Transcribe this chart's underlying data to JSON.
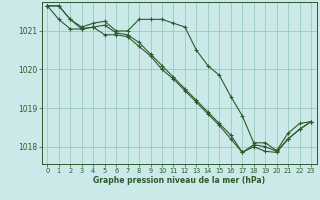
{
  "background_color": "#cbe9e9",
  "plot_bg_color": "#cbe9e9",
  "grid_color": "#99ccbb",
  "line_color": "#2d5a2d",
  "xlabel": "Graphe pression niveau de la mer (hPa)",
  "ylim": [
    1017.55,
    1021.75
  ],
  "xlim": [
    -0.5,
    23.5
  ],
  "yticks": [
    1018,
    1019,
    1020,
    1021
  ],
  "xticks": [
    0,
    1,
    2,
    3,
    4,
    5,
    6,
    7,
    8,
    9,
    10,
    11,
    12,
    13,
    14,
    15,
    16,
    17,
    18,
    19,
    20,
    21,
    22,
    23
  ],
  "series": [
    [
      1021.65,
      1021.65,
      1021.3,
      1021.1,
      1021.2,
      1021.25,
      1021.0,
      1021.0,
      1021.3,
      1021.3,
      1021.3,
      1021.2,
      1021.1,
      1020.5,
      1020.1,
      1019.85,
      1019.3,
      1018.8,
      1018.1,
      1018.1,
      1017.9,
      1018.35,
      1018.6,
      1018.65
    ],
    [
      1021.65,
      1021.65,
      1021.3,
      1021.05,
      1021.1,
      1020.9,
      1020.9,
      1020.85,
      1020.6,
      1020.35,
      1020.0,
      1019.75,
      1019.45,
      1019.15,
      1018.85,
      1018.55,
      1018.2,
      1017.85,
      1018.05,
      1018.0,
      1017.88,
      1018.2,
      1018.45,
      1018.65
    ],
    [
      1021.65,
      1021.3,
      1021.05,
      1021.05,
      1021.1,
      1021.15,
      1020.95,
      1020.9,
      1020.7,
      1020.4,
      1020.1,
      1019.8,
      1019.5,
      1019.2,
      1018.9,
      1018.6,
      1018.3,
      1017.85,
      1018.0,
      1017.88,
      1017.85,
      1018.2,
      1018.45,
      1018.65
    ]
  ]
}
